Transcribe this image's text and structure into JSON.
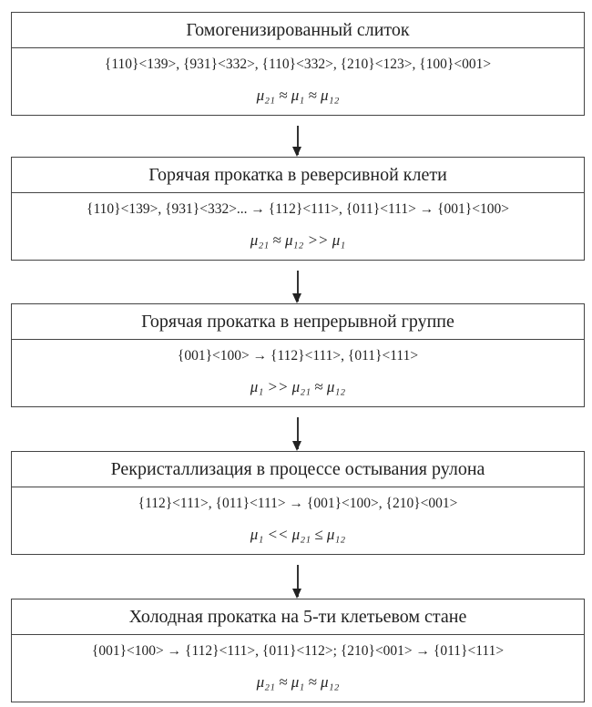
{
  "stages": [
    {
      "title": "Гомогенизированный слиток",
      "textures": "{110}<139>, {931}<332>, {110}<332>, {210}<123>, {100}<001>",
      "relation": "μ₂₁ ≈ μ₁ ≈ μ₁₂"
    },
    {
      "title": "Горячая прокатка в реверсивной клети",
      "textures": "{110}<139>, {931}<332>... → {112}<111>, {011}<111> → {001}<100>",
      "relation": "μ₂₁ ≈ μ₁₂ >> μ₁"
    },
    {
      "title": "Горячая прокатка в непрерывной группе",
      "textures": "{001}<100> → {112}<111>, {011}<111>",
      "relation": "μ₁ >> μ₂₁ ≈ μ₁₂"
    },
    {
      "title": "Рекристаллизация в процессе остывания рулона",
      "textures": "{112}<111>, {011}<111> → {001}<100>, {210}<001>",
      "relation": "μ₁ << μ₂₁ ≤ μ₁₂"
    },
    {
      "title": "Холодная прокатка на 5-ти клетьевом стане",
      "textures": "{001}<100> → {112}<111>, {011}<112>; {210}<001> → {011}<111>",
      "relation": "μ₂₁ ≈ μ₁ ≈ μ₁₂"
    }
  ]
}
